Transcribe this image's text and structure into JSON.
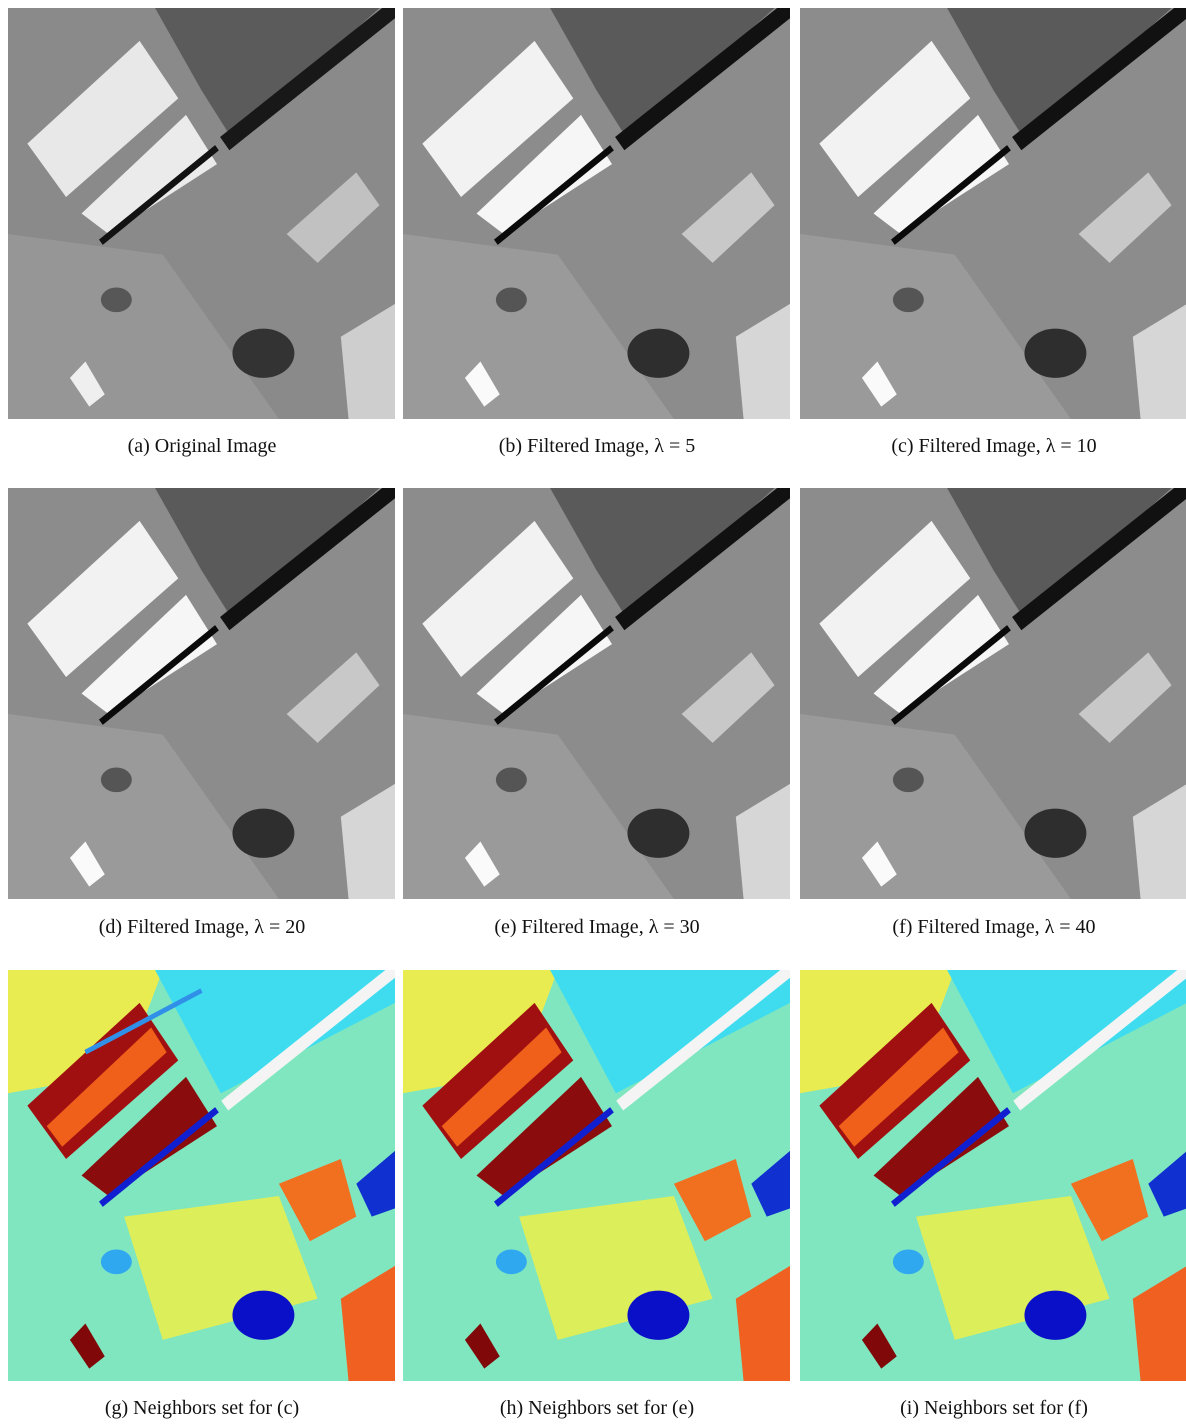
{
  "panels": [
    {
      "caption": "(a) Original Image",
      "kind": "gray"
    },
    {
      "caption": "(b) Filtered Image, λ = 5",
      "kind": "gray"
    },
    {
      "caption": "(c) Filtered Image, λ = 10",
      "kind": "gray"
    },
    {
      "caption": "(d) Filtered Image, λ = 20",
      "kind": "gray"
    },
    {
      "caption": "(e) Filtered Image, λ = 30",
      "kind": "gray"
    },
    {
      "caption": "(f) Filtered Image, λ = 40",
      "kind": "gray"
    },
    {
      "caption": "(g) Neighbors set for (c)",
      "kind": "color"
    },
    {
      "caption": "(h) Neighbors set for (e)",
      "kind": "color"
    },
    {
      "caption": "(i) Neighbors set for (f)",
      "kind": "color"
    }
  ]
}
